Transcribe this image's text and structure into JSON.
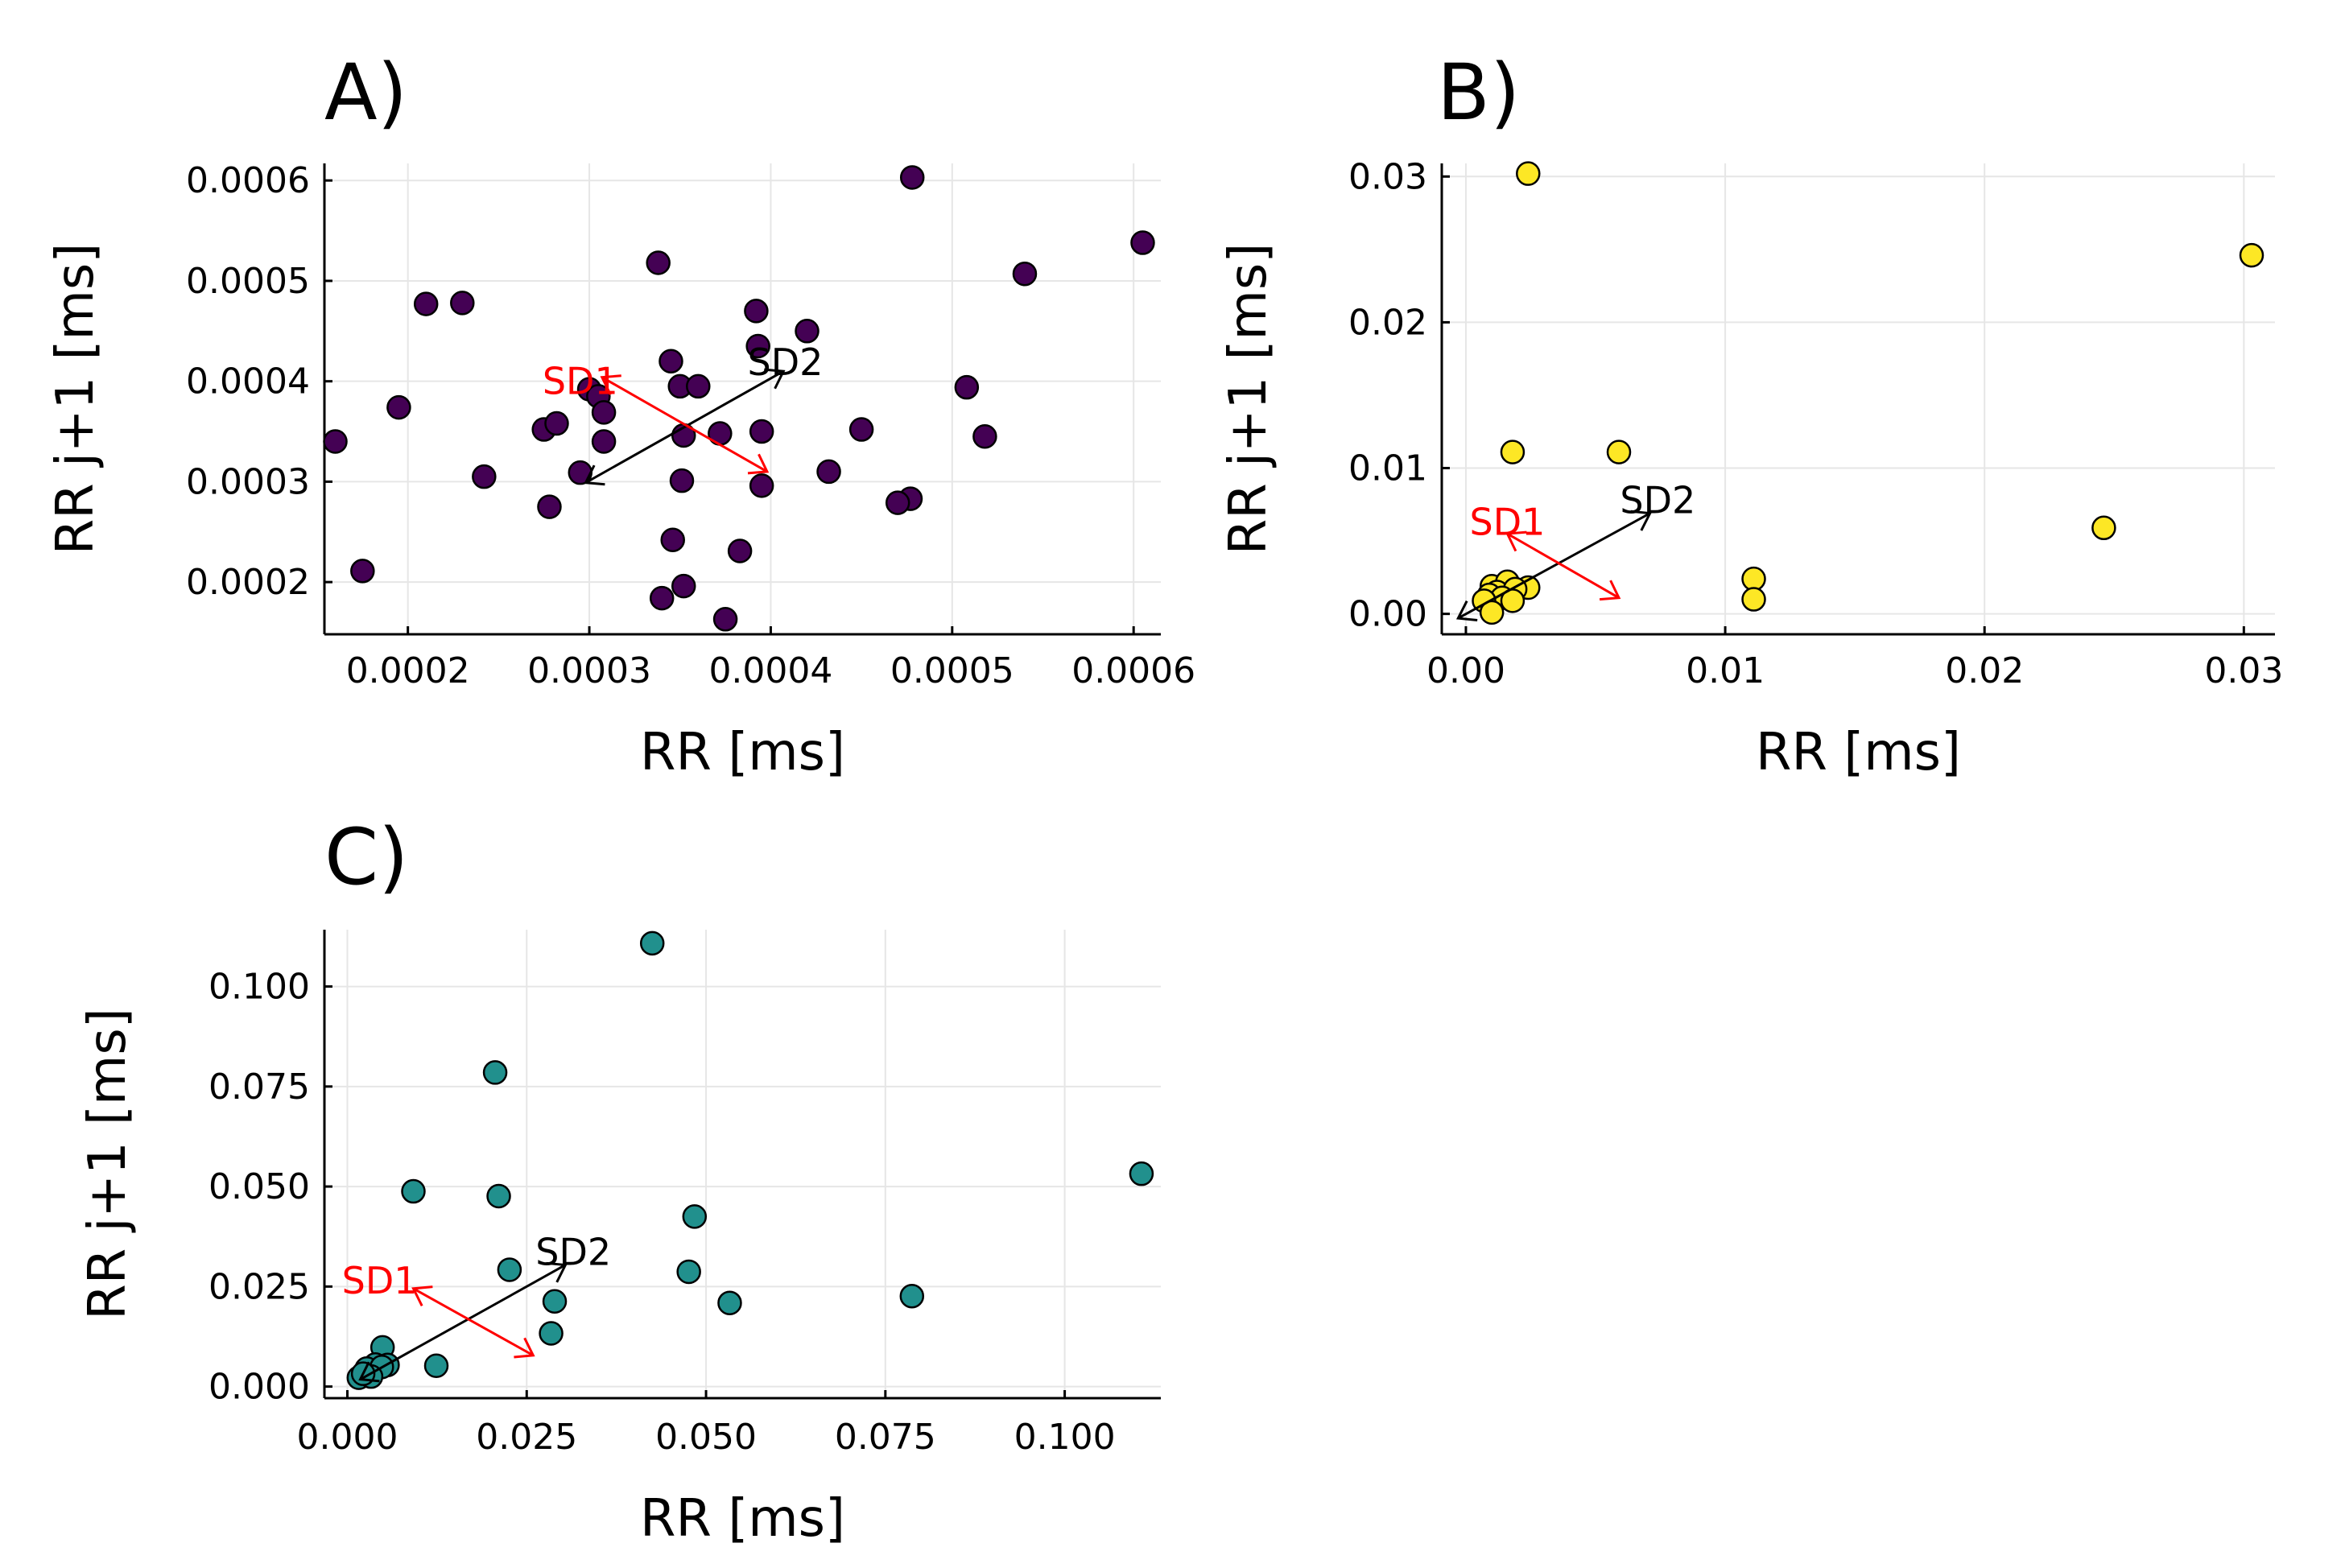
{
  "figure": {
    "background": "#ffffff"
  },
  "chart_data": [
    {
      "id": "A",
      "type": "scatter",
      "title": "A)",
      "xlabel": "RR [ms]",
      "ylabel": "RR j+1 [ms]",
      "xlim": [
        0.000154,
        0.000615
      ],
      "ylim": [
        0.000148,
        0.000617
      ],
      "xticks": [
        0.0002,
        0.0003,
        0.0004,
        0.0005,
        0.0006
      ],
      "xtick_labels": [
        "0.0002",
        "0.0003",
        "0.0004",
        "0.0005",
        "0.0006"
      ],
      "yticks": [
        0.0002,
        0.0003,
        0.0004,
        0.0005,
        0.0006
      ],
      "ytick_labels": [
        "0.0002",
        "0.0003",
        "0.0004",
        "0.0005",
        "0.0006"
      ],
      "grid": true,
      "color": "#440154",
      "x": [
        0.000478,
        0.000605,
        0.00054,
        0.00021,
        0.00023,
        0.000338,
        0.000392,
        0.00042,
        0.000393,
        0.000345,
        0.00035,
        0.00036,
        0.000508,
        0.000195,
        0.0003,
        0.000305,
        0.000308,
        0.000275,
        0.000282,
        0.000308,
        0.00016,
        0.000352,
        0.000372,
        0.000395,
        0.00045,
        0.000518,
        0.000242,
        0.000295,
        0.000351,
        0.000395,
        0.000432,
        0.000477,
        0.00047,
        0.000278,
        0.000346,
        0.000383,
        0.000175,
        0.000352,
        0.00034,
        0.000375
      ],
      "y": [
        0.000603,
        0.000538,
        0.000507,
        0.000477,
        0.000478,
        0.000518,
        0.00047,
        0.00045,
        0.000435,
        0.00042,
        0.000395,
        0.000395,
        0.000394,
        0.000374,
        0.000392,
        0.000385,
        0.000369,
        0.000352,
        0.000358,
        0.00034,
        0.00034,
        0.000346,
        0.000348,
        0.00035,
        0.000352,
        0.000345,
        0.000305,
        0.000309,
        0.000301,
        0.000296,
        0.00031,
        0.000283,
        0.000279,
        0.000275,
        0.000242,
        0.000231,
        0.000211,
        0.000196,
        0.000184,
        0.000163
      ],
      "sd2_arrow": {
        "from": [
          0.000298,
          0.000299
        ],
        "to": [
          0.000407,
          0.00041
        ]
      },
      "sd1_arrow": {
        "end1": [
          0.000307,
          0.000404
        ],
        "end2": [
          0.000398,
          0.00031
        ]
      },
      "sd2_label": "SD2",
      "sd1_label": "SD1",
      "sd2_label_at": [
        0.000408,
        0.000419
      ],
      "sd1_label_at": [
        0.000295,
        0.0004
      ]
    },
    {
      "id": "B",
      "type": "scatter",
      "title": "B)",
      "xlabel": "RR [ms]",
      "ylabel": "RR j+1 [ms]",
      "xlim": [
        -0.00093,
        0.0312
      ],
      "ylim": [
        -0.0014,
        0.0309
      ],
      "xticks": [
        0.0,
        0.01,
        0.02,
        0.03
      ],
      "xtick_labels": [
        "0.00",
        "0.01",
        "0.02",
        "0.03"
      ],
      "yticks": [
        0.0,
        0.01,
        0.02,
        0.03
      ],
      "ytick_labels": [
        "0.00",
        "0.01",
        "0.02",
        "0.03"
      ],
      "grid": true,
      "color": "#fde725",
      "x": [
        0.0024,
        0.0303,
        0.0018,
        0.0059,
        0.0246,
        0.0111,
        0.0111,
        0.001,
        0.0016,
        0.0024,
        0.0012,
        0.0019,
        0.0009,
        0.0014,
        0.0007,
        0.001,
        0.0018
      ],
      "y": [
        0.0302,
        0.0246,
        0.0111,
        0.0111,
        0.0059,
        0.0024,
        0.001,
        0.0019,
        0.0022,
        0.0018,
        0.0015,
        0.0017,
        0.0013,
        0.0011,
        0.0009,
        0.0001,
        0.0009
      ],
      "sd2_arrow": {
        "from": [
          -0.0003,
          -0.0003
        ],
        "to": [
          0.0071,
          0.0069
        ]
      },
      "sd1_arrow": {
        "end1": [
          0.0016,
          0.0055
        ],
        "end2": [
          0.0059,
          0.0011
        ]
      },
      "sd2_label": "SD2",
      "sd1_label": "SD1",
      "sd2_label_at": [
        0.0074,
        0.0078
      ],
      "sd1_label_at": [
        0.0016,
        0.0063
      ]
    },
    {
      "id": "C",
      "type": "scatter",
      "title": "C)",
      "xlabel": "RR [ms]",
      "ylabel": "RR j+1 [ms]",
      "xlim": [
        -0.0032,
        0.1134
      ],
      "ylim": [
        -0.0029,
        0.1142
      ],
      "xticks": [
        0.0,
        0.025,
        0.05,
        0.075,
        0.1
      ],
      "xtick_labels": [
        "0.000",
        "0.025",
        "0.050",
        "0.075",
        "0.100"
      ],
      "yticks": [
        0.0,
        0.025,
        0.05,
        0.075,
        0.1
      ],
      "ytick_labels": [
        "0.000",
        "0.025",
        "0.050",
        "0.075",
        "0.100"
      ],
      "grid": true,
      "color": "#21908d",
      "x": [
        0.0425,
        0.1107,
        0.0206,
        0.0092,
        0.0211,
        0.0484,
        0.0226,
        0.0476,
        0.0289,
        0.0533,
        0.0787,
        0.0284,
        0.0049,
        0.0124,
        0.0056,
        0.0039,
        0.0027,
        0.0048,
        0.0016,
        0.0033,
        0.0022
      ],
      "y": [
        0.1108,
        0.0532,
        0.0785,
        0.0488,
        0.0476,
        0.0425,
        0.0292,
        0.0287,
        0.0213,
        0.0209,
        0.0226,
        0.0133,
        0.0098,
        0.0052,
        0.0054,
        0.0055,
        0.0045,
        0.0049,
        0.0022,
        0.0025,
        0.0032
      ],
      "sd2_arrow": {
        "from": [
          0.0018,
          0.0018
        ],
        "to": [
          0.0304,
          0.0304
        ]
      },
      "sd1_arrow": {
        "end1": [
          0.0092,
          0.0245
        ],
        "end2": [
          0.0259,
          0.0078
        ]
      },
      "sd2_label": "SD2",
      "sd1_label": "SD1",
      "sd2_label_at": [
        0.0315,
        0.0336
      ],
      "sd1_label_at": [
        0.0045,
        0.0265
      ]
    }
  ]
}
